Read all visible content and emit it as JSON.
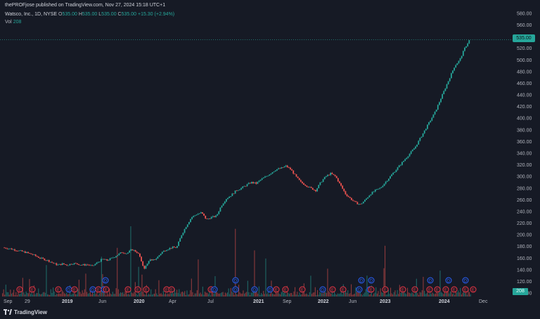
{
  "header": {
    "published": "thePROFjose published on TradingView.com, Nov 27, 2024 15:18 UTC+1",
    "symbol": "Watsco, Inc., 1D, NYSE",
    "o_label": "O",
    "o": "535.00",
    "h_label": "H",
    "h": "535.00",
    "l_label": "L",
    "l": "535.00",
    "c_label": "C",
    "c": "535.00",
    "change": "+15.30 (+2.94%)",
    "vol_label": "Vol",
    "vol": "208"
  },
  "last_price_tag": "535.00",
  "volume_tag": "208",
  "footer": {
    "brand": "TradingView"
  },
  "colors": {
    "up": "#26a69a",
    "down": "#ef5350",
    "bg": "#161a25",
    "event_blue": "#2962ff",
    "event_red": "#f23645"
  },
  "chart_data": {
    "type": "candlestick",
    "y_ticks": [
      "580.00",
      "560.00",
      "540.00",
      "520.00",
      "500.00",
      "480.00",
      "460.00",
      "440.00",
      "420.00",
      "400.00",
      "380.00",
      "360.00",
      "340.00",
      "320.00",
      "300.00",
      "280.00",
      "260.00",
      "240.00",
      "220.00",
      "200.00",
      "180.00",
      "160.00",
      "140.00",
      "120.00",
      "100.00"
    ],
    "ylim": [
      94,
      586
    ],
    "x_ticks": [
      {
        "label": "Sep",
        "bold": false
      },
      {
        "label": "29",
        "bold": false
      },
      {
        "label": "2019",
        "bold": true
      },
      {
        "label": "Jun",
        "bold": false
      },
      {
        "label": "2020",
        "bold": true
      },
      {
        "label": "Apr",
        "bold": false
      },
      {
        "label": "Jul",
        "bold": false
      },
      {
        "label": "2021",
        "bold": true
      },
      {
        "label": "Sep",
        "bold": false
      },
      {
        "label": "2022",
        "bold": true
      },
      {
        "label": "Jun",
        "bold": false
      },
      {
        "label": "2023",
        "bold": true
      },
      {
        "label": "2024",
        "bold": true
      },
      {
        "label": "Dec",
        "bold": false
      }
    ],
    "price_path": [
      [
        0,
        178
      ],
      [
        3,
        176
      ],
      [
        6,
        173
      ],
      [
        9,
        170
      ],
      [
        12,
        166
      ],
      [
        15,
        160
      ],
      [
        18,
        156
      ],
      [
        20,
        152
      ],
      [
        22,
        148
      ],
      [
        24,
        150
      ],
      [
        26,
        148
      ],
      [
        28,
        151
      ],
      [
        30,
        150
      ],
      [
        32,
        148
      ],
      [
        34,
        149
      ],
      [
        36,
        146
      ],
      [
        38,
        152
      ],
      [
        40,
        158
      ],
      [
        42,
        156
      ],
      [
        44,
        160
      ],
      [
        46,
        165
      ],
      [
        48,
        170
      ],
      [
        50,
        168
      ],
      [
        52,
        175
      ],
      [
        54,
        170
      ],
      [
        55,
        165
      ],
      [
        56,
        150
      ],
      [
        57,
        143
      ],
      [
        58,
        148
      ],
      [
        59,
        158
      ],
      [
        60,
        155
      ],
      [
        62,
        160
      ],
      [
        64,
        170
      ],
      [
        66,
        175
      ],
      [
        68,
        178
      ],
      [
        70,
        178
      ],
      [
        72,
        200
      ],
      [
        74,
        216
      ],
      [
        76,
        230
      ],
      [
        78,
        235
      ],
      [
        80,
        238
      ],
      [
        82,
        226
      ],
      [
        84,
        230
      ],
      [
        86,
        232
      ],
      [
        88,
        250
      ],
      [
        90,
        262
      ],
      [
        92,
        268
      ],
      [
        94,
        276
      ],
      [
        96,
        280
      ],
      [
        98,
        285
      ],
      [
        100,
        290
      ],
      [
        102,
        288
      ],
      [
        104,
        295
      ],
      [
        106,
        300
      ],
      [
        108,
        306
      ],
      [
        110,
        312
      ],
      [
        112,
        314
      ],
      [
        114,
        318
      ],
      [
        116,
        312
      ],
      [
        118,
        300
      ],
      [
        120,
        290
      ],
      [
        122,
        285
      ],
      [
        124,
        280
      ],
      [
        126,
        276
      ],
      [
        128,
        290
      ],
      [
        130,
        300
      ],
      [
        132,
        305
      ],
      [
        134,
        300
      ],
      [
        136,
        285
      ],
      [
        138,
        270
      ],
      [
        140,
        262
      ],
      [
        142,
        255
      ],
      [
        144,
        252
      ],
      [
        146,
        260
      ],
      [
        148,
        270
      ],
      [
        150,
        276
      ],
      [
        152,
        280
      ],
      [
        154,
        290
      ],
      [
        156,
        300
      ],
      [
        158,
        310
      ],
      [
        160,
        320
      ],
      [
        162,
        330
      ],
      [
        164,
        340
      ],
      [
        166,
        350
      ],
      [
        168,
        365
      ],
      [
        170,
        380
      ],
      [
        172,
        395
      ],
      [
        174,
        410
      ],
      [
        176,
        430
      ],
      [
        178,
        450
      ],
      [
        180,
        470
      ],
      [
        182,
        490
      ],
      [
        184,
        500
      ],
      [
        186,
        520
      ],
      [
        188,
        535
      ]
    ],
    "volume_pattern": [
      6,
      4,
      8,
      3,
      12,
      5,
      7,
      4,
      10,
      3,
      5,
      14,
      4,
      6,
      3,
      9,
      5,
      4,
      7,
      20,
      5,
      3,
      6,
      4,
      8,
      45,
      6,
      5,
      4,
      11,
      3,
      7,
      5,
      9,
      4,
      6,
      3,
      8,
      5,
      4,
      36,
      6,
      5,
      3,
      7,
      4,
      9,
      5,
      3,
      6
    ]
  }
}
